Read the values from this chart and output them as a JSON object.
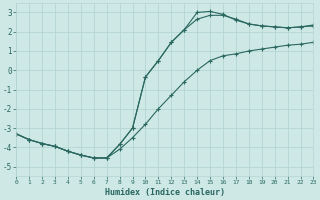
{
  "xlabel": "Humidex (Indice chaleur)",
  "background_color": "#cde8e5",
  "grid_color": "#b5d5d2",
  "line_color": "#2a6860",
  "x_humidex": [
    0,
    1,
    2,
    3,
    4,
    5,
    6,
    7,
    8,
    9,
    10,
    11,
    12,
    13,
    14,
    15,
    16,
    17,
    18,
    19,
    20,
    21,
    22,
    23
  ],
  "y_min": [
    -3.3,
    -3.6,
    -3.8,
    -3.95,
    -4.2,
    -4.4,
    -4.55,
    -4.55,
    -4.1,
    -3.5,
    -2.8,
    -2.0,
    -1.3,
    -0.6,
    0.0,
    0.5,
    0.75,
    0.85,
    1.0,
    1.1,
    1.2,
    1.3,
    1.35,
    1.45
  ],
  "y_mean": [
    -3.3,
    -3.6,
    -3.8,
    -3.95,
    -4.2,
    -4.4,
    -4.55,
    -4.55,
    -3.85,
    -3.0,
    -0.35,
    0.5,
    1.45,
    2.1,
    2.65,
    2.85,
    2.85,
    2.65,
    2.4,
    2.3,
    2.25,
    2.2,
    2.25,
    2.3
  ],
  "y_max": [
    -3.3,
    -3.6,
    -3.8,
    -3.95,
    -4.2,
    -4.4,
    -4.55,
    -4.55,
    -3.85,
    -3.0,
    -0.35,
    0.5,
    1.45,
    2.1,
    3.0,
    3.05,
    2.9,
    2.6,
    2.4,
    2.3,
    2.25,
    2.2,
    2.25,
    2.35
  ],
  "xlim": [
    0,
    23
  ],
  "ylim": [
    -5.5,
    3.5
  ],
  "yticks": [
    -5,
    -4,
    -3,
    -2,
    -1,
    0,
    1,
    2,
    3
  ],
  "xticks": [
    0,
    1,
    2,
    3,
    4,
    5,
    6,
    7,
    8,
    9,
    10,
    11,
    12,
    13,
    14,
    15,
    16,
    17,
    18,
    19,
    20,
    21,
    22,
    23
  ],
  "marker": "+",
  "markersize": 3.5,
  "linewidth": 0.8
}
